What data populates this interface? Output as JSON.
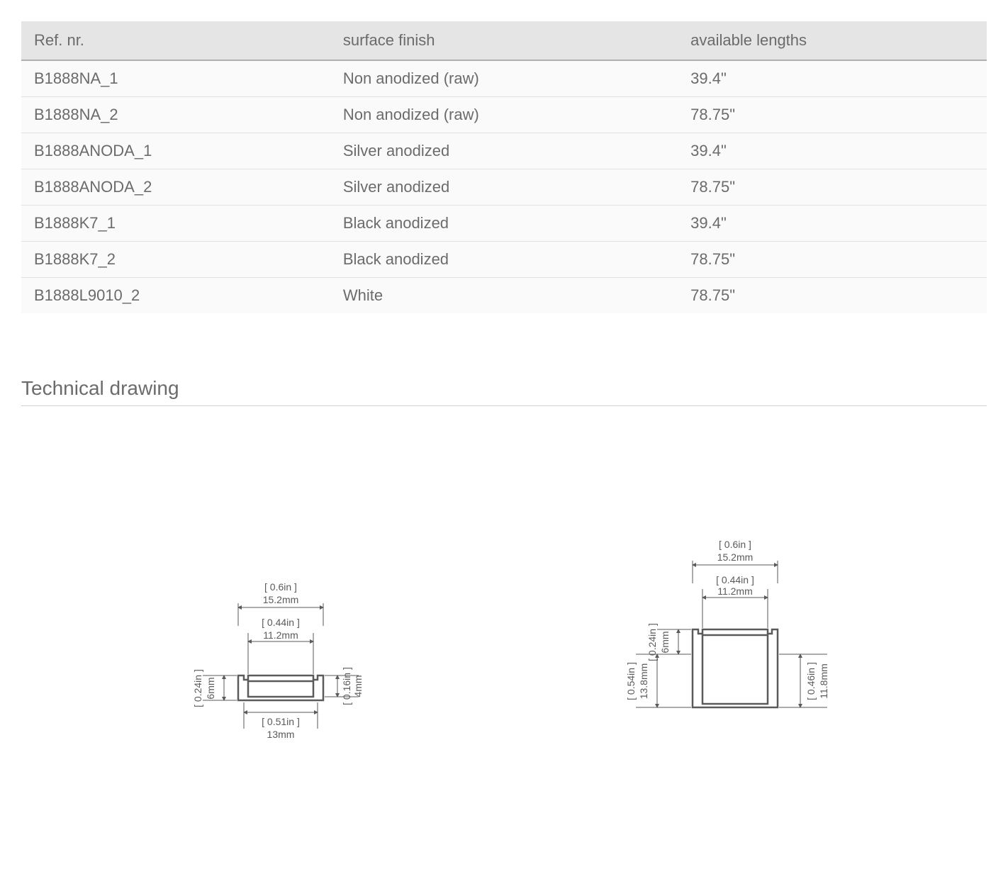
{
  "table": {
    "columns": [
      "Ref. nr.",
      "surface finish",
      "available lengths"
    ],
    "column_widths": [
      "32%",
      "36%",
      "32%"
    ],
    "header_bg": "#e5e5e5",
    "header_border_bottom": "#b0b0b0",
    "row_bg": "#fafafa",
    "row_border": "#e0e0e0",
    "text_color": "#6b6b6b",
    "font_size": 22,
    "rows": [
      [
        "B1888NA_1",
        "Non anodized (raw)",
        "39.4\""
      ],
      [
        "B1888NA_2",
        "Non anodized (raw)",
        "78.75\""
      ],
      [
        "B1888ANODA_1",
        "Silver anodized",
        "39.4\""
      ],
      [
        "B1888ANODA_2",
        "Silver anodized",
        "78.75\""
      ],
      [
        "B1888K7_1",
        "Black anodized",
        "39.4\""
      ],
      [
        "B1888K7_2",
        "Black anodized",
        "78.75\""
      ],
      [
        "B1888L9010_2",
        "White",
        "78.75\""
      ]
    ]
  },
  "section_title": "Technical drawing",
  "drawings": {
    "stroke_color": "#5a5a5a",
    "font_size": 14,
    "left": {
      "top_outer_in": "[ 0.6in ]",
      "top_outer_mm": "15.2mm",
      "top_inner_in": "[ 0.44in ]",
      "top_inner_mm": "11.2mm",
      "left_in": "[ 0.24in ]",
      "left_mm": "6mm",
      "right_in": "[ 0.16in ]",
      "right_mm": "4mm",
      "bottom_in": "[ 0.51in ]",
      "bottom_mm": "13mm"
    },
    "right": {
      "top_outer_in": "[ 0.6in ]",
      "top_outer_mm": "15.2mm",
      "top_inner_in": "[ 0.44in ]",
      "top_inner_mm": "11.2mm",
      "upper_left_in": "[ 0.24in ]",
      "upper_left_mm": "6mm",
      "lower_left_in": "[ 0.54in ]",
      "lower_left_mm": "13.8mm",
      "right_in": "[ 0.46in ]",
      "right_mm": "11.8mm"
    }
  }
}
